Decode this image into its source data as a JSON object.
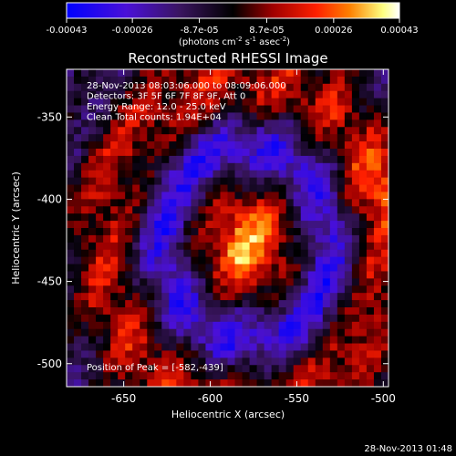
{
  "chart_data": {
    "type": "heatmap",
    "title": "Reconstructed RHESSI Image",
    "xlabel": "Heliocentric X (arcsec)",
    "ylabel": "Heliocentric Y (arcsec)",
    "xlim": [
      -683,
      -497
    ],
    "ylim": [
      -514,
      -321
    ],
    "xticks": [
      -650,
      -600,
      -550,
      -500
    ],
    "yticks": [
      -350,
      -400,
      -450,
      -500
    ],
    "xtick_labels": [
      "-650",
      "-600",
      "-550",
      "-500"
    ],
    "ytick_labels": [
      "-350",
      "-400",
      "-450",
      "-500"
    ],
    "colorbar": {
      "min": -0.00043,
      "max": 0.00043,
      "tick_values": [
        -0.00043,
        -0.00026,
        -8.7e-05,
        8.7e-05,
        0.00026,
        0.00043
      ],
      "tick_labels": [
        "-0.00043",
        "-0.00026",
        "-8.7e-05",
        "8.7e-05",
        "0.00026",
        "0.00043"
      ],
      "units_base": "(photons cm",
      "units_sup1": "-2",
      "units_mid": " s",
      "units_sup2": "-1",
      "units_end": " asec",
      "units_sup3": "-2",
      "units_close": ")"
    },
    "annotations": [
      "28-Nov-2013 08:03:06.000 to 08:09:06.000",
      "Detectors: 3F 5F 6F 7F 8F 9F, Att 0",
      "Energy Range: 12.0 - 25.0 keV",
      "Clean     Total counts: 1.94E+04"
    ],
    "peak_label": "Position of Peak = [-582,-439]",
    "peak": [
      -582,
      -439
    ],
    "timestamp": "28-Nov-2013 01:48",
    "colors": {
      "background": "#000000",
      "low": "#0000ff",
      "zero": "#000000",
      "high_mid": "#ff2000",
      "high": "#ffff80",
      "top": "#ffffff"
    }
  }
}
